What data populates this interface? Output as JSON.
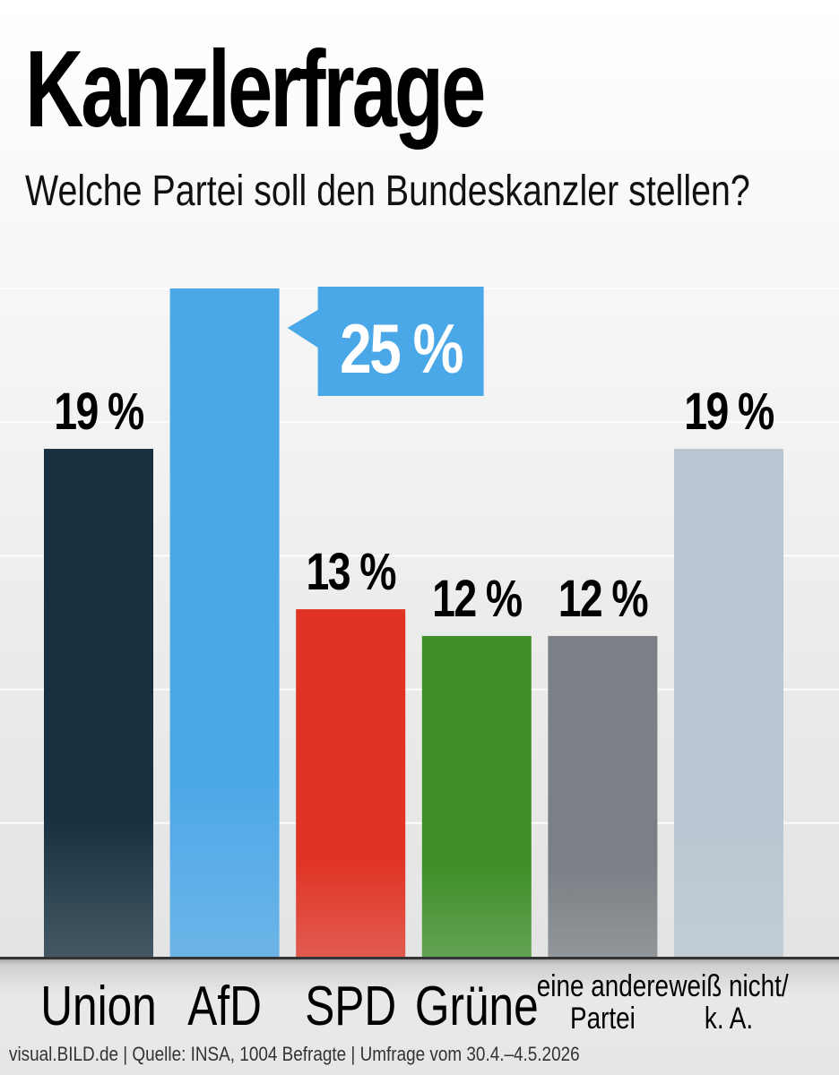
{
  "header": {
    "title": "Kanzlerfrage",
    "subtitle": "Welche Partei soll den Bundeskanzler stellen?"
  },
  "footer": {
    "source": "visual.BILD.de | Quelle: INSA, 1004 Befragte | Umfrage vom 30.4.–4.5.2026"
  },
  "chart_data": {
    "type": "bar",
    "title": "Kanzlerfrage",
    "subtitle": "Welche Partei soll den Bundeskanzler stellen?",
    "categories": [
      [
        "Union"
      ],
      [
        "AfD"
      ],
      [
        "SPD"
      ],
      [
        "Grüne"
      ],
      [
        "eine andere",
        "Partei"
      ],
      [
        "weiß nicht/",
        "k. A."
      ]
    ],
    "values": [
      19,
      25,
      13,
      12,
      12,
      19
    ],
    "value_labels": [
      "19 %",
      "25 %",
      "13 %",
      "12 %",
      "12 %",
      "19 %"
    ],
    "highlight_index": 1,
    "unit": "%",
    "colors": [
      "#16303f",
      "#4aa7e8",
      "#e03324",
      "#3f8f29",
      "#7a8085",
      "#b9c6d1"
    ],
    "highlight_color": "#4aa7e8",
    "ylim": [
      0,
      25
    ],
    "grid": true,
    "legend": "none"
  }
}
